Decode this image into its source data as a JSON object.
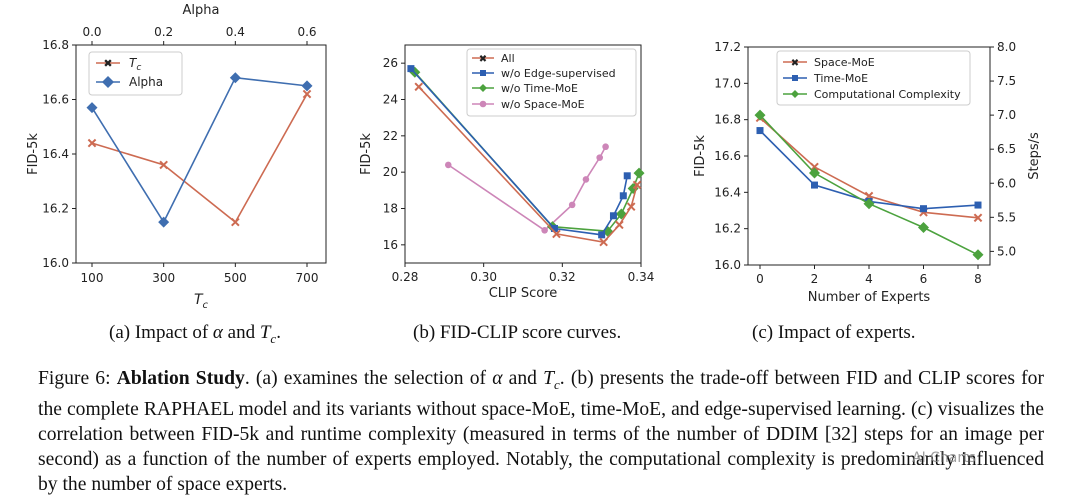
{
  "chart_data": [
    {
      "id": "a",
      "type": "line",
      "xlabel": "T",
      "xlabel_sub": "c",
      "ylabel": "FID-5k",
      "top_axis_label": "Alpha",
      "categories": [
        "100",
        "300",
        "500",
        "700"
      ],
      "top_ticks": [
        "0.0",
        "0.2",
        "0.4",
        "0.6"
      ],
      "yticks": [
        "16.0",
        "16.2",
        "16.4",
        "16.6",
        "16.8"
      ],
      "ylim": [
        16.0,
        16.8
      ],
      "legend_pos": "top-left",
      "series": [
        {
          "name": "T",
          "name_sub": "c",
          "color": "#cd6b52",
          "marker": "x",
          "values": [
            16.44,
            16.36,
            16.15,
            16.62
          ]
        },
        {
          "name": "Alpha",
          "color": "#3f6eb0",
          "marker": "diamond",
          "values": [
            16.57,
            16.15,
            16.68,
            16.65
          ]
        }
      ]
    },
    {
      "id": "b",
      "type": "line",
      "xlabel": "CLIP Score",
      "ylabel": "FID-5k",
      "xlim": [
        0.28,
        0.34
      ],
      "ylim": [
        15,
        27
      ],
      "xticks": [
        "0.28",
        "0.30",
        "0.32",
        "0.34"
      ],
      "yticks": [
        "16",
        "18",
        "20",
        "22",
        "24",
        "26"
      ],
      "legend_pos": "top-right",
      "series": [
        {
          "name": "All",
          "color": "#cd6b52",
          "marker": "x",
          "x": [
            0.2835,
            0.3185,
            0.3305,
            0.3345,
            0.3375,
            0.339
          ],
          "y": [
            24.7,
            16.6,
            16.15,
            17.1,
            18.1,
            19.3
          ]
        },
        {
          "name": "w/o Edge-supervised",
          "color": "#2d5fb1",
          "marker": "square",
          "x": [
            0.2815,
            0.318,
            0.33,
            0.333,
            0.3355,
            0.3365
          ],
          "y": [
            25.7,
            16.9,
            16.55,
            17.6,
            18.7,
            19.8
          ]
        },
        {
          "name": "w/o Time-MoE",
          "color": "#4ca23e",
          "marker": "diamond",
          "x": [
            0.2825,
            0.3175,
            0.3315,
            0.335,
            0.338,
            0.3395
          ],
          "y": [
            25.5,
            17.0,
            16.75,
            17.7,
            19.1,
            19.95
          ]
        },
        {
          "name": "w/o Space-MoE",
          "color": "#cd86b8",
          "marker": "circle",
          "x": [
            0.291,
            0.3155,
            0.3225,
            0.326,
            0.3295,
            0.331
          ],
          "y": [
            20.4,
            16.8,
            18.2,
            19.6,
            20.8,
            21.4
          ]
        }
      ]
    },
    {
      "id": "c",
      "type": "line",
      "xlabel": "Number of Experts",
      "ylabel": "FID-5k",
      "ylabel_right": "Steps/s",
      "x": [
        0,
        2,
        4,
        6,
        8
      ],
      "xticks": [
        "0",
        "2",
        "4",
        "6",
        "8"
      ],
      "yticks": [
        "16.0",
        "16.2",
        "16.4",
        "16.6",
        "16.8",
        "17.0",
        "17.2"
      ],
      "yticks_right": [
        "5.0",
        "5.5",
        "6.0",
        "6.5",
        "7.0",
        "7.5",
        "8.0"
      ],
      "ylim": [
        16.0,
        17.2
      ],
      "ylim_right": [
        4.8,
        8.0
      ],
      "legend_pos": "top-left",
      "series": [
        {
          "name": "Space-MoE",
          "color": "#cd6b52",
          "marker": "x",
          "axis": "left",
          "values": [
            16.81,
            16.54,
            16.38,
            16.29,
            16.26
          ]
        },
        {
          "name": "Time-MoE",
          "color": "#2d5fb1",
          "marker": "square",
          "axis": "left",
          "values": [
            16.74,
            16.44,
            16.35,
            16.31,
            16.33
          ]
        },
        {
          "name": "Computational Complexity",
          "color": "#4ca23e",
          "marker": "diamond",
          "axis": "right",
          "values": [
            7.0,
            6.15,
            5.7,
            5.35,
            4.95
          ]
        }
      ]
    }
  ],
  "subcaptions": {
    "a_prefix": "(a) Impact of ",
    "a_alpha": "α",
    "a_and": " and ",
    "a_T": "T",
    "a_c": "c",
    "a_end": ".",
    "b": "(b) FID-CLIP score curves.",
    "c": "(c) Impact of experts."
  },
  "caption": {
    "label": "Figure 6:",
    "bold_title": "Ablation Study",
    "p1": ". (a) examines the selection of ",
    "alpha": "α",
    "p2": " and ",
    "T": "T",
    "c": "c",
    "p3": ". (b) presents the trade-off between FID and CLIP scores for the complete RAPHAEL model and its variants without space-MoE, time-MoE, and edge-supervised learning. (c) visualizes the correlation between FID-5k and runtime complexity (measured in terms of the number of DDIM [32] steps for an image per second) as a function of the number of experts employed. Notably, the computational complexity is predominantly influenced by the number of space experts."
  },
  "watermark": "AI Charts"
}
